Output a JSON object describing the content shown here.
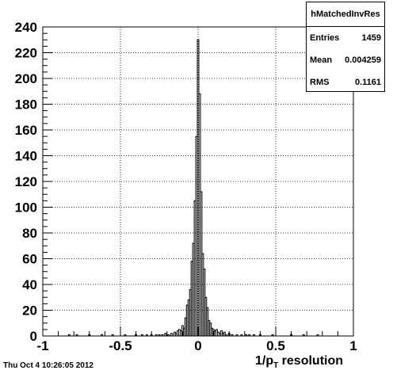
{
  "chart_data": {
    "type": "bar",
    "title": "",
    "xlabel": "1/p_T resolution",
    "ylabel": "",
    "xlim": [
      -1,
      1
    ],
    "ylim": [
      0,
      240
    ],
    "grid": true,
    "x_ticks": [
      "-1",
      "-0.5",
      "0",
      "0.5",
      "1"
    ],
    "x_tick_values": [
      -1,
      -0.5,
      0,
      0.5,
      1
    ],
    "y_ticks": [
      "0",
      "20",
      "40",
      "60",
      "80",
      "100",
      "120",
      "140",
      "160",
      "180",
      "200",
      "220",
      "240"
    ],
    "y_tick_values": [
      0,
      20,
      40,
      60,
      80,
      100,
      120,
      140,
      160,
      180,
      200,
      220,
      240
    ],
    "bin_width": 0.01,
    "bins": [
      {
        "x": -0.83,
        "y": 1
      },
      {
        "x": -0.78,
        "y": 1
      },
      {
        "x": -0.7,
        "y": 1
      },
      {
        "x": -0.62,
        "y": 1
      },
      {
        "x": -0.55,
        "y": 1
      },
      {
        "x": -0.47,
        "y": 1
      },
      {
        "x": -0.4,
        "y": 1
      },
      {
        "x": -0.36,
        "y": 1
      },
      {
        "x": -0.33,
        "y": 1
      },
      {
        "x": -0.3,
        "y": 1
      },
      {
        "x": -0.27,
        "y": 1
      },
      {
        "x": -0.25,
        "y": 1
      },
      {
        "x": -0.23,
        "y": 1
      },
      {
        "x": -0.21,
        "y": 2
      },
      {
        "x": -0.19,
        "y": 1
      },
      {
        "x": -0.17,
        "y": 2
      },
      {
        "x": -0.15,
        "y": 3
      },
      {
        "x": -0.14,
        "y": 2
      },
      {
        "x": -0.13,
        "y": 4
      },
      {
        "x": -0.12,
        "y": 5
      },
      {
        "x": -0.11,
        "y": 4
      },
      {
        "x": -0.1,
        "y": 8
      },
      {
        "x": -0.09,
        "y": 6
      },
      {
        "x": -0.08,
        "y": 14
      },
      {
        "x": -0.07,
        "y": 24
      },
      {
        "x": -0.06,
        "y": 28
      },
      {
        "x": -0.05,
        "y": 36
      },
      {
        "x": -0.04,
        "y": 58
      },
      {
        "x": -0.03,
        "y": 72
      },
      {
        "x": -0.02,
        "y": 105
      },
      {
        "x": -0.01,
        "y": 155
      },
      {
        "x": 0.0,
        "y": 230
      },
      {
        "x": 0.01,
        "y": 188
      },
      {
        "x": 0.02,
        "y": 112
      },
      {
        "x": 0.03,
        "y": 64
      },
      {
        "x": 0.04,
        "y": 52
      },
      {
        "x": 0.05,
        "y": 30
      },
      {
        "x": 0.06,
        "y": 22
      },
      {
        "x": 0.07,
        "y": 12
      },
      {
        "x": 0.08,
        "y": 10
      },
      {
        "x": 0.09,
        "y": 6
      },
      {
        "x": 0.1,
        "y": 5
      },
      {
        "x": 0.11,
        "y": 4
      },
      {
        "x": 0.12,
        "y": 5
      },
      {
        "x": 0.13,
        "y": 3
      },
      {
        "x": 0.14,
        "y": 2
      },
      {
        "x": 0.15,
        "y": 4
      },
      {
        "x": 0.16,
        "y": 2
      },
      {
        "x": 0.17,
        "y": 3
      },
      {
        "x": 0.18,
        "y": 1
      },
      {
        "x": 0.2,
        "y": 2
      },
      {
        "x": 0.22,
        "y": 1
      },
      {
        "x": 0.25,
        "y": 1
      },
      {
        "x": 0.28,
        "y": 1
      },
      {
        "x": 0.31,
        "y": 1
      },
      {
        "x": 0.33,
        "y": 1
      },
      {
        "x": 0.36,
        "y": 1
      },
      {
        "x": 0.4,
        "y": 1
      },
      {
        "x": 0.48,
        "y": 1
      },
      {
        "x": 0.6,
        "y": 1
      },
      {
        "x": 0.68,
        "y": 1
      },
      {
        "x": 0.77,
        "y": 1
      }
    ]
  },
  "stats_box": {
    "title": "hMatchedInvRes",
    "entries_label": "Entries",
    "entries_value": "1459",
    "mean_label": "Mean",
    "mean_value": "0.004259",
    "rms_label": "RMS",
    "rms_value": "0.1161"
  },
  "xlabel_main": "1/p",
  "xlabel_sub": "T",
  "xlabel_rest": " resolution",
  "timestamp": "Thu Oct  4 10:26:05 2012"
}
